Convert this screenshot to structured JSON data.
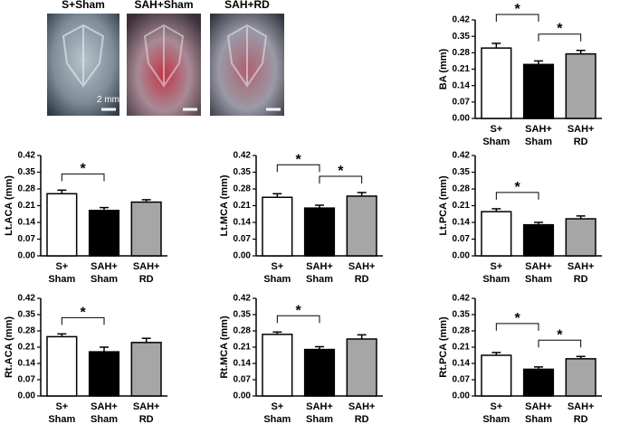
{
  "photos": {
    "labels": [
      "S+Sham",
      "SAH+Sham",
      "SAH+RD"
    ],
    "scale_label": "2 mm"
  },
  "chart_data": [
    {
      "type": "bar",
      "ylabel": "BA (mm)",
      "categories": [
        "S+ Sham",
        "SAH+ Sham",
        "SAH+ RD"
      ],
      "values": [
        0.3,
        0.23,
        0.275
      ],
      "errors": [
        0.02,
        0.015,
        0.015
      ],
      "colors": [
        "#ffffff",
        "#000000",
        "#a6a6a6"
      ],
      "ylim": [
        0,
        0.42
      ],
      "yticks": [
        {
          "value": 0,
          "label": "0.00"
        },
        0.07,
        0.14,
        0.21,
        0.28,
        0.35,
        0.42
      ],
      "significance": [
        {
          "pair": [
            0,
            1
          ],
          "label": "*"
        },
        {
          "pair": [
            1,
            2
          ],
          "label": "*"
        }
      ]
    },
    {
      "type": "bar",
      "ylabel": "Lt.ACA (mm)",
      "categories": [
        "S+ Sham",
        "SAH+ Sham",
        "SAH+ RD"
      ],
      "values": [
        0.26,
        0.19,
        0.225
      ],
      "errors": [
        0.015,
        0.012,
        0.01
      ],
      "colors": [
        "#ffffff",
        "#000000",
        "#a6a6a6"
      ],
      "ylim": [
        0,
        0.42
      ],
      "yticks": [
        {
          "value": 0,
          "label": "0.00"
        },
        0.07,
        0.14,
        0.21,
        0.28,
        0.35,
        0.42
      ],
      "significance": [
        {
          "pair": [
            0,
            1
          ],
          "label": "*"
        }
      ]
    },
    {
      "type": "bar",
      "ylabel": "Lt.MCA (mm)",
      "categories": [
        "S+ Sham",
        "SAH+ Sham",
        "SAH+ RD"
      ],
      "values": [
        0.245,
        0.2,
        0.25
      ],
      "errors": [
        0.015,
        0.012,
        0.015
      ],
      "colors": [
        "#ffffff",
        "#000000",
        "#a6a6a6"
      ],
      "ylim": [
        0,
        0.42
      ],
      "yticks": [
        {
          "value": 0,
          "label": "0.00"
        },
        0.07,
        0.14,
        0.21,
        0.28,
        0.35,
        0.42
      ],
      "significance": [
        {
          "pair": [
            0,
            1
          ],
          "label": "*"
        },
        {
          "pair": [
            1,
            2
          ],
          "label": "*"
        }
      ]
    },
    {
      "type": "bar",
      "ylabel": "Lt.PCA (mm)",
      "categories": [
        "S+ Sham",
        "SAH+ Sham",
        "SAH+ RD"
      ],
      "values": [
        0.185,
        0.13,
        0.155
      ],
      "errors": [
        0.012,
        0.01,
        0.012
      ],
      "colors": [
        "#ffffff",
        "#000000",
        "#a6a6a6"
      ],
      "ylim": [
        0,
        0.42
      ],
      "yticks": [
        {
          "value": 0,
          "label": "0.00"
        },
        0.07,
        0.14,
        0.21,
        0.28,
        0.35,
        0.42
      ],
      "significance": [
        {
          "pair": [
            0,
            1
          ],
          "label": "*"
        }
      ]
    },
    {
      "type": "bar",
      "ylabel": "Rt.ACA (mm)",
      "categories": [
        "S+ Sham",
        "SAH+ Sham",
        "SAH+ RD"
      ],
      "values": [
        0.255,
        0.19,
        0.23
      ],
      "errors": [
        0.012,
        0.02,
        0.018
      ],
      "colors": [
        "#ffffff",
        "#000000",
        "#a6a6a6"
      ],
      "ylim": [
        0,
        0.42
      ],
      "yticks": [
        {
          "value": 0,
          "label": "0.00"
        },
        0.07,
        0.14,
        0.21,
        0.28,
        0.35,
        0.42
      ],
      "significance": [
        {
          "pair": [
            0,
            1
          ],
          "label": "*"
        }
      ]
    },
    {
      "type": "bar",
      "ylabel": "Rt.MCA (mm)",
      "categories": [
        "S+ Sham",
        "SAH+ Sham",
        "SAH+ RD"
      ],
      "values": [
        0.265,
        0.2,
        0.245
      ],
      "errors": [
        0.01,
        0.012,
        0.018
      ],
      "colors": [
        "#ffffff",
        "#000000",
        "#a6a6a6"
      ],
      "ylim": [
        0,
        0.42
      ],
      "yticks": [
        {
          "value": 0,
          "label": "0.00"
        },
        0.07,
        0.14,
        0.21,
        0.28,
        0.35,
        0.42
      ],
      "significance": [
        {
          "pair": [
            0,
            1
          ],
          "label": "*"
        }
      ]
    },
    {
      "type": "bar",
      "ylabel": "Rt.PCA (mm)",
      "categories": [
        "S+ Sham",
        "SAH+ Sham",
        "SAH+ RD"
      ],
      "values": [
        0.175,
        0.115,
        0.16
      ],
      "errors": [
        0.012,
        0.01,
        0.01
      ],
      "colors": [
        "#ffffff",
        "#000000",
        "#a6a6a6"
      ],
      "ylim": [
        0,
        0.42
      ],
      "yticks": [
        {
          "value": 0,
          "label": "0.00"
        },
        0.07,
        0.14,
        0.21,
        0.28,
        0.35,
        0.42
      ],
      "significance": [
        {
          "pair": [
            0,
            1
          ],
          "label": "*"
        },
        {
          "pair": [
            1,
            2
          ],
          "label": "*"
        }
      ]
    }
  ]
}
